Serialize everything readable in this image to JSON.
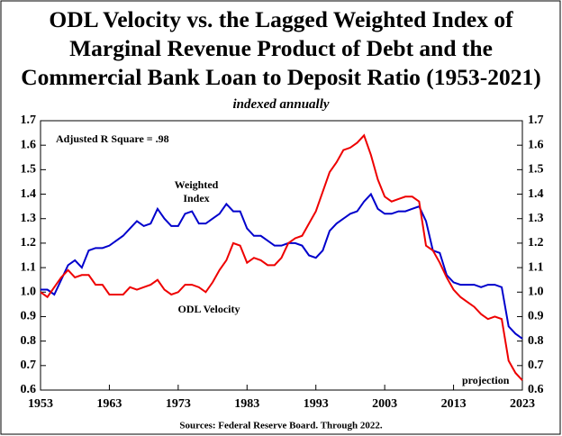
{
  "chart_data": {
    "type": "line",
    "title": "ODL Velocity vs. the Lagged Weighted Index of\nMarginal Revenue Product of Debt and the\nCommercial Bank Loan to Deposit Ratio (1953-2021)",
    "subtitle": "indexed annually",
    "source": "Sources: Federal Reserve Board. Through 2022.",
    "annotations": [
      "Adjusted R Square = .98",
      "projection"
    ],
    "x": [
      1953,
      1954,
      1955,
      1956,
      1957,
      1958,
      1959,
      1960,
      1961,
      1962,
      1963,
      1964,
      1965,
      1966,
      1967,
      1968,
      1969,
      1970,
      1971,
      1972,
      1973,
      1974,
      1975,
      1976,
      1977,
      1978,
      1979,
      1980,
      1981,
      1982,
      1983,
      1984,
      1985,
      1986,
      1987,
      1988,
      1989,
      1990,
      1991,
      1992,
      1993,
      1994,
      1995,
      1996,
      1997,
      1998,
      1999,
      2000,
      2001,
      2002,
      2003,
      2004,
      2005,
      2006,
      2007,
      2008,
      2009,
      2010,
      2011,
      2012,
      2013,
      2014,
      2015,
      2016,
      2017,
      2018,
      2019,
      2020,
      2021,
      2022,
      2023
    ],
    "series": [
      {
        "name": "Weighted Index",
        "color": "#0000cc",
        "values": [
          1.01,
          1.01,
          0.99,
          1.05,
          1.11,
          1.13,
          1.1,
          1.17,
          1.18,
          1.18,
          1.19,
          1.21,
          1.23,
          1.26,
          1.29,
          1.27,
          1.28,
          1.34,
          1.3,
          1.27,
          1.27,
          1.32,
          1.33,
          1.28,
          1.28,
          1.3,
          1.32,
          1.36,
          1.33,
          1.33,
          1.26,
          1.23,
          1.23,
          1.21,
          1.19,
          1.19,
          1.2,
          1.2,
          1.19,
          1.15,
          1.14,
          1.17,
          1.25,
          1.28,
          1.3,
          1.32,
          1.33,
          1.37,
          1.4,
          1.34,
          1.32,
          1.32,
          1.33,
          1.33,
          1.34,
          1.35,
          1.29,
          1.17,
          1.16,
          1.07,
          1.04,
          1.03,
          1.03,
          1.03,
          1.02,
          1.03,
          1.03,
          1.02,
          0.86,
          0.83,
          0.81
        ]
      },
      {
        "name": "ODL Velocity",
        "color": "#ee0000",
        "values": [
          1.0,
          0.98,
          1.02,
          1.06,
          1.09,
          1.06,
          1.07,
          1.07,
          1.03,
          1.03,
          0.99,
          0.99,
          0.99,
          1.02,
          1.01,
          1.02,
          1.03,
          1.05,
          1.01,
          0.99,
          1.0,
          1.03,
          1.03,
          1.02,
          1.0,
          1.04,
          1.09,
          1.13,
          1.2,
          1.19,
          1.12,
          1.14,
          1.13,
          1.11,
          1.11,
          1.14,
          1.2,
          1.22,
          1.23,
          1.28,
          1.33,
          1.41,
          1.49,
          1.53,
          1.58,
          1.59,
          1.61,
          1.64,
          1.56,
          1.46,
          1.39,
          1.37,
          1.38,
          1.39,
          1.39,
          1.37,
          1.19,
          1.17,
          1.12,
          1.06,
          1.01,
          0.98,
          0.96,
          0.94,
          0.91,
          0.89,
          0.9,
          0.89,
          0.72,
          0.67,
          0.64
        ]
      }
    ],
    "xlim": [
      1953,
      2023
    ],
    "xticks": [
      1953,
      1963,
      1973,
      1983,
      1993,
      2003,
      2013,
      2023
    ],
    "ylim": [
      0.6,
      1.7
    ],
    "yticks": [
      0.6,
      0.7,
      0.8,
      0.9,
      {
        "value": 1,
        "label": "1.0"
      },
      1.1,
      1.2,
      1.3,
      1.4,
      1.5,
      1.6,
      1.7
    ],
    "y2lim": [
      0.6,
      1.7
    ],
    "y2ticks": [
      0.6,
      0.7,
      0.8,
      0.9,
      {
        "value": 1,
        "label": "1.0"
      },
      1.1,
      1.2,
      1.3,
      1.4,
      1.5,
      1.6,
      1.7
    ]
  }
}
